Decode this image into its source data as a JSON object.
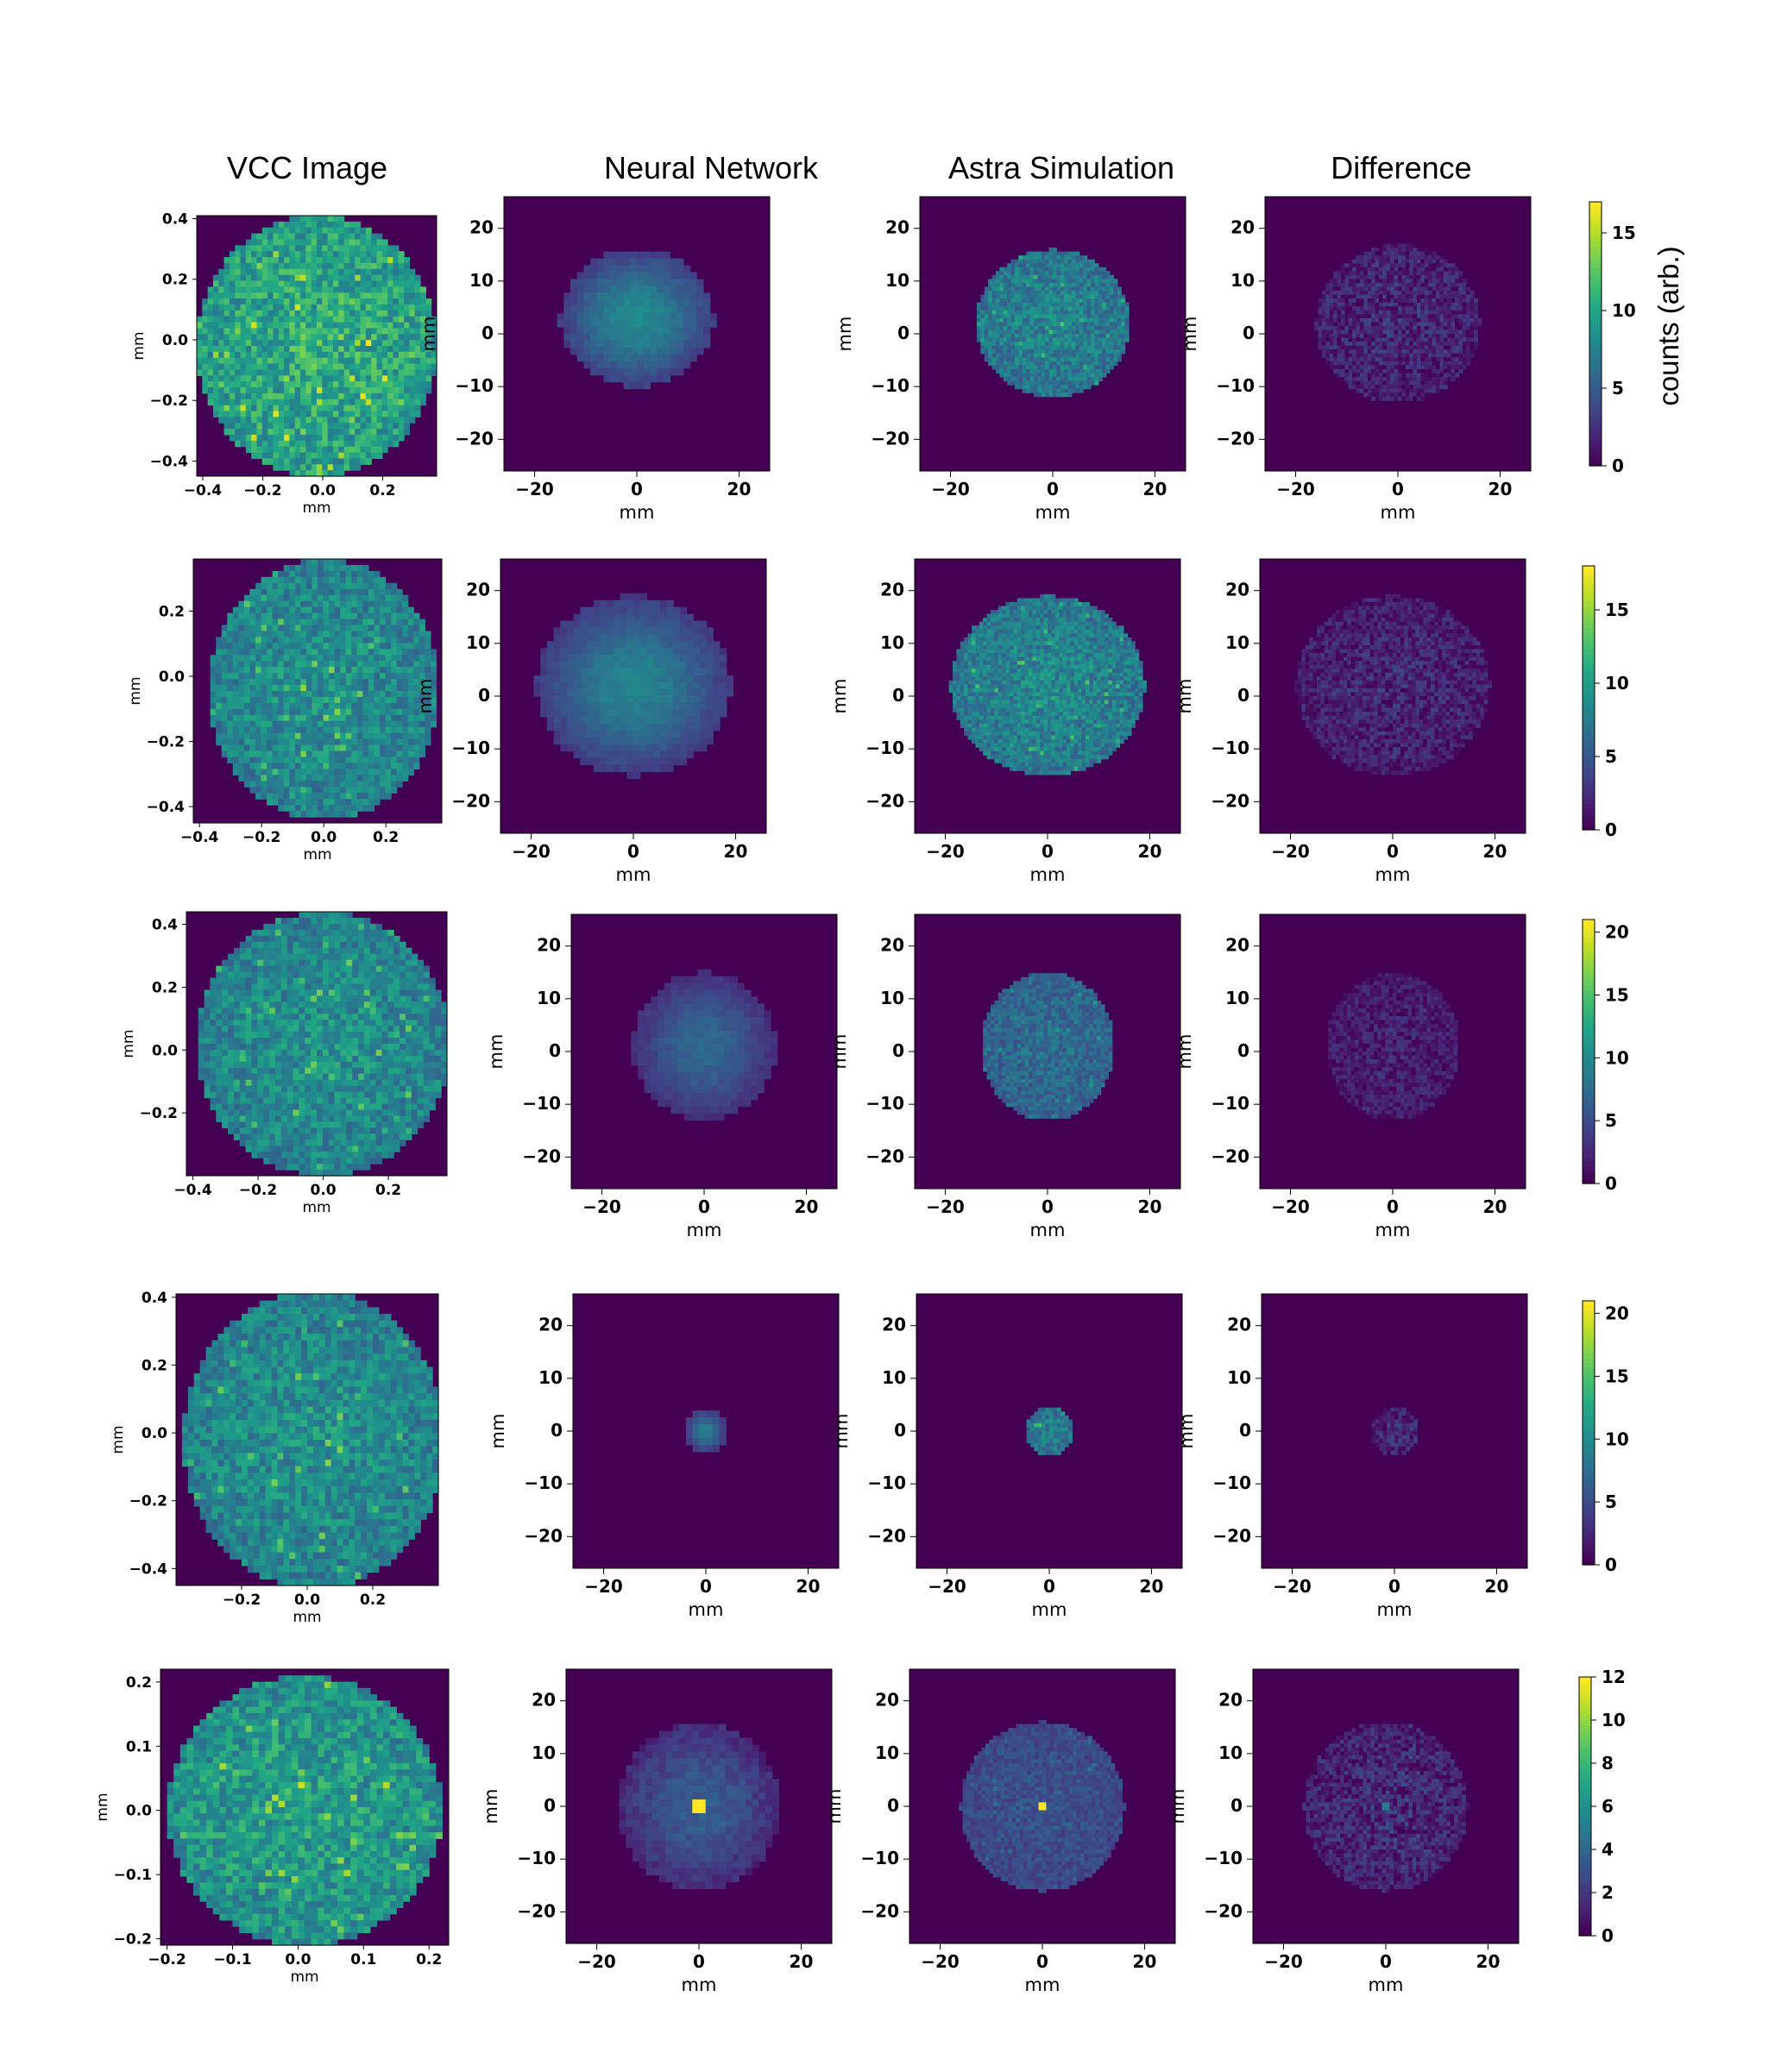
{
  "column_titles": [
    "VCC Image",
    "Neural Network",
    "Astra Simulation",
    "Difference"
  ],
  "colorbar_label": "counts (arb.)",
  "chart_data": [
    {
      "type": "heatmap",
      "row": 1,
      "panel": "VCC Image",
      "xlabel": "mm",
      "ylabel": "mm",
      "xlim": [
        -0.42,
        0.38
      ],
      "ylim": [
        -0.45,
        0.41
      ],
      "xticks": [
        "−0.4",
        "−0.2",
        "0.0",
        "0.2"
      ],
      "xtick_values": [
        -0.4,
        -0.2,
        0.0,
        0.2
      ],
      "yticks": [
        "0.4",
        "0.2",
        "0.0",
        "−0.2",
        "−0.4"
      ],
      "ytick_values": [
        0.4,
        0.2,
        0.0,
        -0.2,
        -0.4
      ],
      "blob": {
        "cx": -0.02,
        "cy": -0.02,
        "rx": 0.4,
        "ry": 0.43,
        "texture": "grainy",
        "peak": 14
      }
    },
    {
      "type": "heatmap",
      "row": 1,
      "panel": "Neural Network",
      "xlabel": "mm",
      "ylabel": "mm",
      "xlim": [
        -26,
        26
      ],
      "ylim": [
        -26,
        26
      ],
      "xticks": [
        "−20",
        "0",
        "20"
      ],
      "xtick_values": [
        -20,
        0,
        20
      ],
      "yticks": [
        "20",
        "10",
        "0",
        "−10",
        "−20"
      ],
      "ytick_values": [
        20,
        10,
        0,
        -10,
        -20
      ],
      "blob": {
        "cx": 0,
        "cy": 3,
        "rx": 15,
        "ry": 13,
        "texture": "smooth",
        "peak": 9
      }
    },
    {
      "type": "heatmap",
      "row": 1,
      "panel": "Astra Simulation",
      "xlabel": "mm",
      "ylabel": "mm",
      "xlim": [
        -26,
        26
      ],
      "ylim": [
        -26,
        26
      ],
      "xticks": [
        "−20",
        "0",
        "20"
      ],
      "xtick_values": [
        -20,
        0,
        20
      ],
      "yticks": [
        "20",
        "10",
        "0",
        "−10",
        "−20"
      ],
      "ytick_values": [
        20,
        10,
        0,
        -10,
        -20
      ],
      "blob": {
        "cx": 0,
        "cy": 2,
        "rx": 15,
        "ry": 14,
        "texture": "grainy",
        "peak": 10
      }
    },
    {
      "type": "heatmap",
      "row": 1,
      "panel": "Difference",
      "xlabel": "mm",
      "ylabel": "mm",
      "xlim": [
        -26,
        26
      ],
      "ylim": [
        -26,
        26
      ],
      "xticks": [
        "−20",
        "0",
        "20"
      ],
      "xtick_values": [
        -20,
        0,
        20
      ],
      "yticks": [
        "20",
        "10",
        "0",
        "−10",
        "−20"
      ],
      "ytick_values": [
        20,
        10,
        0,
        -10,
        -20
      ],
      "blob": {
        "cx": 0,
        "cy": 2,
        "rx": 16,
        "ry": 15,
        "texture": "faint",
        "peak": 4
      }
    },
    {
      "type": "colorbar",
      "row": 1,
      "vmin": 0,
      "vmax": 17,
      "ticks": [
        "0",
        "5",
        "10",
        "15"
      ],
      "tick_values": [
        0,
        5,
        10,
        15
      ]
    },
    {
      "type": "heatmap",
      "row": 2,
      "panel": "VCC Image",
      "xlabel": "mm",
      "ylabel": "mm",
      "xlim": [
        -0.42,
        0.38
      ],
      "ylim": [
        -0.45,
        0.36
      ],
      "xticks": [
        "−0.4",
        "−0.2",
        "0.0",
        "0.2"
      ],
      "xtick_values": [
        -0.4,
        -0.2,
        0.0,
        0.2
      ],
      "yticks": [
        "0.2",
        "0.0",
        "−0.2",
        "−0.4"
      ],
      "ytick_values": [
        0.2,
        0.0,
        -0.2,
        -0.4
      ],
      "blob": {
        "cx": 0.0,
        "cy": -0.04,
        "rx": 0.37,
        "ry": 0.4,
        "texture": "grainy",
        "peak": 12
      }
    },
    {
      "type": "heatmap",
      "row": 2,
      "panel": "Neural Network",
      "xlabel": "mm",
      "ylabel": "mm",
      "xlim": [
        -26,
        26
      ],
      "ylim": [
        -26,
        26
      ],
      "xticks": [
        "−20",
        "0",
        "20"
      ],
      "xtick_values": [
        -20,
        0,
        20
      ],
      "yticks": [
        "20",
        "10",
        "0",
        "−10",
        "−20"
      ],
      "ytick_values": [
        20,
        10,
        0,
        -10,
        -20
      ],
      "blob": {
        "cx": 0,
        "cy": 2,
        "rx": 19,
        "ry": 17,
        "texture": "smooth",
        "peak": 9
      }
    },
    {
      "type": "heatmap",
      "row": 2,
      "panel": "Astra Simulation",
      "xlabel": "mm",
      "ylabel": "mm",
      "xlim": [
        -26,
        26
      ],
      "ylim": [
        -26,
        26
      ],
      "xticks": [
        "−20",
        "0",
        "20"
      ],
      "xtick_values": [
        -20,
        0,
        20
      ],
      "yticks": [
        "20",
        "10",
        "0",
        "−10",
        "−20"
      ],
      "ytick_values": [
        20,
        10,
        0,
        -10,
        -20
      ],
      "blob": {
        "cx": 0,
        "cy": 2,
        "rx": 19,
        "ry": 17,
        "texture": "grainy",
        "peak": 11
      }
    },
    {
      "type": "heatmap",
      "row": 2,
      "panel": "Difference",
      "xlabel": "mm",
      "ylabel": "mm",
      "xlim": [
        -26,
        26
      ],
      "ylim": [
        -26,
        26
      ],
      "xticks": [
        "−20",
        "0",
        "20"
      ],
      "xtick_values": [
        -20,
        0,
        20
      ],
      "yticks": [
        "20",
        "10",
        "0",
        "−10",
        "−20"
      ],
      "ytick_values": [
        20,
        10,
        0,
        -10,
        -20
      ],
      "blob": {
        "cx": 0,
        "cy": 2,
        "rx": 19,
        "ry": 17,
        "texture": "faint",
        "peak": 4
      }
    },
    {
      "type": "colorbar",
      "row": 2,
      "vmin": 0,
      "vmax": 18,
      "ticks": [
        "0",
        "5",
        "10",
        "15"
      ],
      "tick_values": [
        0,
        5,
        10,
        15
      ]
    },
    {
      "type": "heatmap",
      "row": 3,
      "panel": "VCC Image",
      "xlabel": "mm",
      "ylabel": "mm",
      "xlim": [
        -0.42,
        0.38
      ],
      "ylim": [
        -0.4,
        0.44
      ],
      "xticks": [
        "−0.4",
        "−0.2",
        "0.0",
        "0.2"
      ],
      "xtick_values": [
        -0.4,
        -0.2,
        0.0,
        0.2
      ],
      "yticks": [
        "0.4",
        "0.2",
        "0.0",
        "−0.2"
      ],
      "ytick_values": [
        0.4,
        0.2,
        0.0,
        -0.2
      ],
      "blob": {
        "cx": 0.0,
        "cy": 0.02,
        "rx": 0.39,
        "ry": 0.42,
        "texture": "grainy",
        "peak": 14
      }
    },
    {
      "type": "heatmap",
      "row": 3,
      "panel": "Neural Network",
      "xlabel": "mm",
      "ylabel": "mm",
      "xlim": [
        -26,
        26
      ],
      "ylim": [
        -26,
        26
      ],
      "xticks": [
        "−20",
        "0",
        "20"
      ],
      "xtick_values": [
        -20,
        0,
        20
      ],
      "yticks": [
        "20",
        "10",
        "0",
        "−10",
        "−20"
      ],
      "ytick_values": [
        20,
        10,
        0,
        -10,
        -20
      ],
      "blob": {
        "cx": 0,
        "cy": 1,
        "rx": 14,
        "ry": 14,
        "texture": "smooth",
        "peak": 8
      }
    },
    {
      "type": "heatmap",
      "row": 3,
      "panel": "Astra Simulation",
      "xlabel": "mm",
      "ylabel": "mm",
      "xlim": [
        -26,
        26
      ],
      "ylim": [
        -26,
        26
      ],
      "xticks": [
        "−20",
        "0",
        "20"
      ],
      "xtick_values": [
        -20,
        0,
        20
      ],
      "yticks": [
        "20",
        "10",
        "0",
        "−10",
        "−20"
      ],
      "ytick_values": [
        20,
        10,
        0,
        -10,
        -20
      ],
      "blob": {
        "cx": 0,
        "cy": 1,
        "rx": 13,
        "ry": 14,
        "texture": "grainy",
        "peak": 10
      }
    },
    {
      "type": "heatmap",
      "row": 3,
      "panel": "Difference",
      "xlabel": "mm",
      "ylabel": "mm",
      "xlim": [
        -26,
        26
      ],
      "ylim": [
        -26,
        26
      ],
      "xticks": [
        "−20",
        "0",
        "20"
      ],
      "xtick_values": [
        -20,
        0,
        20
      ],
      "yticks": [
        "20",
        "10",
        "0",
        "−10",
        "−20"
      ],
      "ytick_values": [
        20,
        10,
        0,
        -10,
        -20
      ],
      "blob": {
        "cx": 0,
        "cy": 1,
        "rx": 13,
        "ry": 14,
        "texture": "faint",
        "peak": 4
      }
    },
    {
      "type": "colorbar",
      "row": 3,
      "vmin": 0,
      "vmax": 21,
      "ticks": [
        "0",
        "5",
        "10",
        "15",
        "20"
      ],
      "tick_values": [
        0,
        5,
        10,
        15,
        20
      ]
    },
    {
      "type": "heatmap",
      "row": 4,
      "panel": "VCC Image",
      "xlabel": "mm",
      "ylabel": "mm",
      "xlim": [
        -0.4,
        0.4
      ],
      "ylim": [
        -0.45,
        0.41
      ],
      "xticks": [
        "−0.2",
        "0.0",
        "0.2"
      ],
      "xtick_values": [
        -0.2,
        0.0,
        0.2
      ],
      "yticks": [
        "0.4",
        "0.2",
        "0.0",
        "−0.2",
        "−0.4"
      ],
      "ytick_values": [
        0.4,
        0.2,
        0.0,
        -0.2,
        -0.4
      ],
      "blob": {
        "cx": 0.02,
        "cy": -0.02,
        "rx": 0.4,
        "ry": 0.44,
        "texture": "grainy",
        "peak": 14
      }
    },
    {
      "type": "heatmap",
      "row": 4,
      "panel": "Neural Network",
      "xlabel": "mm",
      "ylabel": "mm",
      "xlim": [
        -26,
        26
      ],
      "ylim": [
        -26,
        26
      ],
      "xticks": [
        "−20",
        "0",
        "20"
      ],
      "xtick_values": [
        -20,
        0,
        20
      ],
      "yticks": [
        "20",
        "10",
        "0",
        "−10",
        "−20"
      ],
      "ytick_values": [
        20,
        10,
        0,
        -10,
        -20
      ],
      "blob": {
        "cx": 0,
        "cy": 0,
        "rx": 4,
        "ry": 4,
        "texture": "smooth",
        "peak": 10
      }
    },
    {
      "type": "heatmap",
      "row": 4,
      "panel": "Astra Simulation",
      "xlabel": "mm",
      "ylabel": "mm",
      "xlim": [
        -26,
        26
      ],
      "ylim": [
        -26,
        26
      ],
      "xticks": [
        "−20",
        "0",
        "20"
      ],
      "xtick_values": [
        -20,
        0,
        20
      ],
      "yticks": [
        "20",
        "10",
        "0",
        "−10",
        "−20"
      ],
      "ytick_values": [
        20,
        10,
        0,
        -10,
        -20
      ],
      "blob": {
        "cx": 0,
        "cy": 0,
        "rx": 4.5,
        "ry": 4.5,
        "texture": "grainy",
        "peak": 12
      }
    },
    {
      "type": "heatmap",
      "row": 4,
      "panel": "Difference",
      "xlabel": "mm",
      "ylabel": "mm",
      "xlim": [
        -26,
        26
      ],
      "ylim": [
        -26,
        26
      ],
      "xticks": [
        "−20",
        "0",
        "20"
      ],
      "xtick_values": [
        -20,
        0,
        20
      ],
      "yticks": [
        "20",
        "10",
        "0",
        "−10",
        "−20"
      ],
      "ytick_values": [
        20,
        10,
        0,
        -10,
        -20
      ],
      "blob": {
        "cx": 0,
        "cy": 0,
        "rx": 4.5,
        "ry": 4.5,
        "texture": "faint",
        "peak": 5
      }
    },
    {
      "type": "colorbar",
      "row": 4,
      "vmin": 0,
      "vmax": 21,
      "ticks": [
        "0",
        "5",
        "10",
        "15",
        "20"
      ],
      "tick_values": [
        0,
        5,
        10,
        15,
        20
      ]
    },
    {
      "type": "heatmap",
      "row": 5,
      "panel": "VCC Image",
      "xlabel": "mm",
      "ylabel": "mm",
      "xlim": [
        -0.21,
        0.23
      ],
      "ylim": [
        -0.21,
        0.22
      ],
      "xticks": [
        "−0.2",
        "−0.1",
        "0.0",
        "0.1",
        "0.2"
      ],
      "xtick_values": [
        -0.2,
        -0.1,
        0.0,
        0.1,
        0.2
      ],
      "yticks": [
        "0.2",
        "0.1",
        "0.0",
        "−0.1",
        "−0.2"
      ],
      "ytick_values": [
        0.2,
        0.1,
        0.0,
        -0.1,
        -0.2
      ],
      "blob": {
        "cx": 0.01,
        "cy": 0.0,
        "rx": 0.21,
        "ry": 0.21,
        "texture": "grainy",
        "peak": 9
      }
    },
    {
      "type": "heatmap",
      "row": 5,
      "panel": "Neural Network",
      "xlabel": "mm",
      "ylabel": "mm",
      "xlim": [
        -26,
        26
      ],
      "ylim": [
        -26,
        26
      ],
      "xticks": [
        "−20",
        "0",
        "20"
      ],
      "xtick_values": [
        -20,
        0,
        20
      ],
      "yticks": [
        "20",
        "10",
        "0",
        "−10",
        "−20"
      ],
      "ytick_values": [
        20,
        10,
        0,
        -10,
        -20
      ],
      "blob": {
        "cx": 0,
        "cy": 0,
        "rx": 16,
        "ry": 16,
        "texture": "smooth",
        "peak": 4,
        "hotspot": 12
      }
    },
    {
      "type": "heatmap",
      "row": 5,
      "panel": "Astra Simulation",
      "xlabel": "mm",
      "ylabel": "mm",
      "xlim": [
        -26,
        26
      ],
      "ylim": [
        -26,
        26
      ],
      "xticks": [
        "−20",
        "0",
        "20"
      ],
      "xtick_values": [
        -20,
        0,
        20
      ],
      "yticks": [
        "20",
        "10",
        "0",
        "−10",
        "−20"
      ],
      "ytick_values": [
        20,
        10,
        0,
        -10,
        -20
      ],
      "blob": {
        "cx": 0,
        "cy": 0,
        "rx": 16,
        "ry": 16,
        "texture": "grainy",
        "peak": 4,
        "hotspot": 12
      }
    },
    {
      "type": "heatmap",
      "row": 5,
      "panel": "Difference",
      "xlabel": "mm",
      "ylabel": "mm",
      "xlim": [
        -26,
        26
      ],
      "ylim": [
        -26,
        26
      ],
      "xticks": [
        "−20",
        "0",
        "20"
      ],
      "xtick_values": [
        -20,
        0,
        20
      ],
      "yticks": [
        "20",
        "10",
        "0",
        "−10",
        "−20"
      ],
      "ytick_values": [
        20,
        10,
        0,
        -10,
        -20
      ],
      "blob": {
        "cx": 0,
        "cy": 0,
        "rx": 16,
        "ry": 16,
        "texture": "faint",
        "peak": 3,
        "hotspot": 5
      }
    },
    {
      "type": "colorbar",
      "row": 5,
      "vmin": 0,
      "vmax": 12,
      "ticks": [
        "0",
        "2",
        "4",
        "6",
        "8",
        "10",
        "12"
      ],
      "tick_values": [
        0,
        2,
        4,
        6,
        8,
        10,
        12
      ]
    }
  ],
  "colormap": "viridis"
}
